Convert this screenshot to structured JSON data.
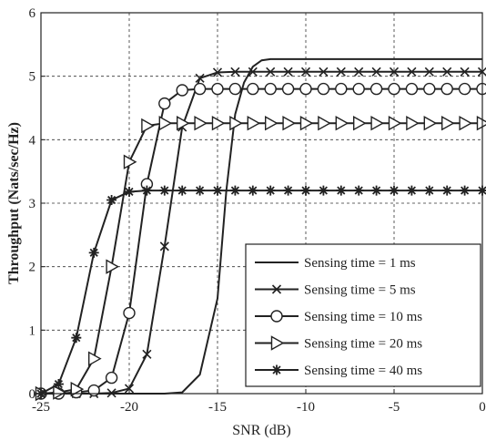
{
  "chart_data": {
    "type": "line",
    "title": "",
    "xlabel": "SNR (dB)",
    "ylabel": "Throughput (Nats/sec/Hz)",
    "xlim": [
      -25,
      0
    ],
    "ylim": [
      0,
      6
    ],
    "xticks": [
      -25,
      -20,
      -15,
      -10,
      -5,
      0
    ],
    "yticks": [
      0,
      1,
      2,
      3,
      4,
      5,
      6
    ],
    "grid": true,
    "legend_position": "bottom-right",
    "series": [
      {
        "name": "Sensing time = 1 ms",
        "marker": "none",
        "x": [
          -25,
          -18,
          -17,
          -16,
          -15,
          -14.5,
          -14,
          -13.5,
          -13,
          -12.5,
          -12,
          0
        ],
        "y": [
          0,
          0,
          0.02,
          0.3,
          1.5,
          3.2,
          4.4,
          4.9,
          5.15,
          5.25,
          5.27,
          5.27
        ]
      },
      {
        "name": "Sensing time = 5 ms",
        "marker": "x",
        "x": [
          -25,
          -24,
          -23,
          -22,
          -21,
          -20,
          -19,
          -18,
          -17,
          -16,
          -15,
          -14,
          -13,
          -12,
          -11,
          -10,
          -9,
          -8,
          -7,
          -6,
          -5,
          -4,
          -3,
          -2,
          -1,
          0
        ],
        "y": [
          0,
          0,
          0,
          0,
          0.01,
          0.08,
          0.62,
          2.32,
          4.2,
          4.97,
          5.06,
          5.07,
          5.07,
          5.07,
          5.07,
          5.07,
          5.07,
          5.07,
          5.07,
          5.07,
          5.07,
          5.07,
          5.07,
          5.07,
          5.07,
          5.07
        ]
      },
      {
        "name": "Sensing time = 10 ms",
        "marker": "circle",
        "x": [
          -25,
          -24,
          -23,
          -22,
          -21,
          -20,
          -19,
          -18,
          -17,
          -16,
          -15,
          -14,
          -13,
          -12,
          -11,
          -10,
          -9,
          -8,
          -7,
          -6,
          -5,
          -4,
          -3,
          -2,
          -1,
          0
        ],
        "y": [
          0,
          0,
          0.02,
          0.05,
          0.25,
          1.27,
          3.3,
          4.57,
          4.78,
          4.8,
          4.8,
          4.8,
          4.8,
          4.8,
          4.8,
          4.8,
          4.8,
          4.8,
          4.8,
          4.8,
          4.8,
          4.8,
          4.8,
          4.8,
          4.8,
          4.8
        ]
      },
      {
        "name": "Sensing time = 20 ms",
        "marker": "triangle-right",
        "x": [
          -25,
          -24,
          -23,
          -22,
          -21,
          -20,
          -19,
          -18,
          -17,
          -16,
          -15,
          -14,
          -13,
          -12,
          -11,
          -10,
          -9,
          -8,
          -7,
          -6,
          -5,
          -4,
          -3,
          -2,
          -1,
          0
        ],
        "y": [
          0,
          0.02,
          0.07,
          0.55,
          2.0,
          3.65,
          4.22,
          4.26,
          4.26,
          4.26,
          4.26,
          4.26,
          4.26,
          4.26,
          4.26,
          4.26,
          4.26,
          4.26,
          4.26,
          4.26,
          4.26,
          4.26,
          4.26,
          4.26,
          4.26,
          4.26
        ]
      },
      {
        "name": "Sensing time = 40 ms",
        "marker": "star",
        "x": [
          -25,
          -24,
          -23,
          -22,
          -21,
          -20,
          -19,
          -18,
          -17,
          -16,
          -15,
          -14,
          -13,
          -12,
          -11,
          -10,
          -9,
          -8,
          -7,
          -6,
          -5,
          -4,
          -3,
          -2,
          -1,
          0
        ],
        "y": [
          0,
          0.15,
          0.88,
          2.22,
          3.05,
          3.18,
          3.2,
          3.2,
          3.2,
          3.2,
          3.2,
          3.2,
          3.2,
          3.2,
          3.2,
          3.2,
          3.2,
          3.2,
          3.2,
          3.2,
          3.2,
          3.2,
          3.2,
          3.2,
          3.2,
          3.2
        ]
      }
    ]
  }
}
